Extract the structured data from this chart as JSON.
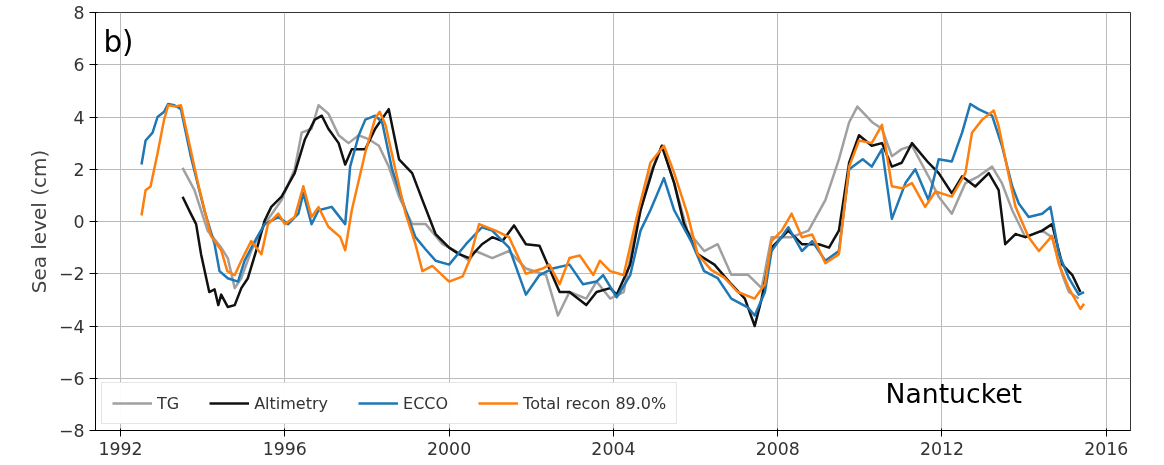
{
  "chart_data": {
    "type": "line",
    "ylabel": "Sea level (cm)",
    "xlim": [
      1991.39,
      2016.59
    ],
    "ylim": [
      -8,
      8
    ],
    "xticks": [
      1992,
      1996,
      2000,
      2004,
      2008,
      2012,
      2016
    ],
    "yticks": [
      -8,
      -6,
      -4,
      -2,
      0,
      2,
      4,
      6,
      8
    ],
    "grid": true,
    "legend": "bottom left",
    "line_style": "solid",
    "marker": "none",
    "annotations": [
      "b)",
      "Nantucket"
    ],
    "series": [
      {
        "name": "TG",
        "color": "#a0a0a0",
        "x": [
          1993.51,
          1993.8,
          1994.12,
          1994.45,
          1994.61,
          1994.78,
          1994.94,
          1995.18,
          1995.51,
          1995.92,
          1996.24,
          1996.41,
          1996.65,
          1996.82,
          1997.06,
          1997.31,
          1997.55,
          1997.8,
          1998.04,
          1998.29,
          1998.53,
          1998.78,
          1999.1,
          1999.43,
          1999.84,
          2000.16,
          2000.49,
          2000.64,
          2001.05,
          2001.46,
          2001.87,
          2002.36,
          2002.65,
          2002.93,
          2003.34,
          2003.59,
          2003.92,
          2004.25,
          2004.57,
          2004.9,
          2005.18,
          2005.48,
          2005.8,
          2006.21,
          2006.54,
          2006.87,
          2007.28,
          2007.61,
          2007.85,
          2008.34,
          2008.75,
          2009.16,
          2009.49,
          2009.74,
          2009.94,
          2010.3,
          2010.54,
          2010.78,
          2011.02,
          2011.27,
          2011.67,
          2011.92,
          2012.24,
          2012.57,
          2012.89,
          2013.22,
          2013.46,
          2013.71,
          2014.03,
          2014.44,
          2014.68,
          2014.93,
          2015.09,
          2015.33
        ],
        "values": [
          2.05,
          1.2,
          -0.35,
          -1.0,
          -1.4,
          -2.55,
          -2.17,
          -1.13,
          -0.1,
          0.82,
          2.0,
          3.4,
          3.55,
          4.45,
          4.13,
          3.3,
          3.0,
          3.3,
          3.15,
          2.9,
          2.1,
          0.95,
          -0.1,
          -0.1,
          -0.87,
          -1.13,
          -1.5,
          -1.13,
          -1.4,
          -1.13,
          -1.8,
          -2.05,
          -3.6,
          -2.7,
          -2.95,
          -2.3,
          -2.95,
          -2.7,
          -0.1,
          1.86,
          2.9,
          1.47,
          -0.35,
          -1.13,
          -0.87,
          -2.04,
          -2.04,
          -2.55,
          -0.6,
          -0.6,
          -0.35,
          0.82,
          2.38,
          3.8,
          4.4,
          3.8,
          3.55,
          2.5,
          2.77,
          2.9,
          1.73,
          0.95,
          0.3,
          1.47,
          1.73,
          2.1,
          1.47,
          0.43,
          -0.6,
          -0.35,
          -0.6,
          -2.04,
          -2.7,
          -2.95
        ]
      },
      {
        "name": "Altimetry",
        "color": "#111111",
        "x": [
          1993.51,
          1993.71,
          1993.84,
          1993.96,
          1994.16,
          1994.29,
          1994.38,
          1994.45,
          1994.61,
          1994.78,
          1994.94,
          1995.1,
          1995.35,
          1995.51,
          1995.67,
          1995.92,
          1996.24,
          1996.49,
          1996.73,
          1996.9,
          1997.06,
          1997.31,
          1997.47,
          1997.63,
          1997.96,
          1998.2,
          1998.53,
          1998.78,
          1999.1,
          1999.35,
          1999.67,
          2000.0,
          2000.24,
          2000.49,
          2000.8,
          2001.05,
          2001.3,
          2001.58,
          2001.87,
          2002.2,
          2002.44,
          2002.69,
          2002.93,
          2003.34,
          2003.59,
          2003.92,
          2004.08,
          2004.41,
          2004.66,
          2004.98,
          2005.18,
          2005.48,
          2005.72,
          2006.05,
          2006.46,
          2006.87,
          2007.2,
          2007.44,
          2007.61,
          2007.85,
          2008.26,
          2008.59,
          2009.0,
          2009.25,
          2009.49,
          2009.74,
          2009.98,
          2010.29,
          2010.54,
          2010.78,
          2011.02,
          2011.27,
          2011.67,
          2011.92,
          2012.24,
          2012.49,
          2012.81,
          2013.14,
          2013.38,
          2013.54,
          2013.79,
          2014.03,
          2014.44,
          2014.68,
          2014.93,
          2015.17,
          2015.37
        ],
        "values": [
          0.95,
          0.3,
          -0.1,
          -1.25,
          -2.7,
          -2.6,
          -3.2,
          -2.8,
          -3.27,
          -3.2,
          -2.55,
          -2.17,
          -0.87,
          0.04,
          0.56,
          0.95,
          1.85,
          3.15,
          3.9,
          4.05,
          3.55,
          3.0,
          2.18,
          2.77,
          2.77,
          3.55,
          4.3,
          2.38,
          1.85,
          0.82,
          -0.48,
          -1.0,
          -1.25,
          -1.4,
          -0.87,
          -0.6,
          -0.75,
          -0.15,
          -0.87,
          -0.93,
          -1.8,
          -2.7,
          -2.7,
          -3.2,
          -2.7,
          -2.55,
          -2.8,
          -1.65,
          0.43,
          2.1,
          2.9,
          1.47,
          -0.1,
          -1.25,
          -1.65,
          -2.4,
          -2.95,
          -4.0,
          -2.95,
          -1.0,
          -0.35,
          -0.87,
          -0.87,
          -1.0,
          -0.35,
          2.25,
          3.3,
          2.9,
          3.0,
          2.1,
          2.25,
          3.0,
          2.25,
          1.85,
          1.08,
          1.73,
          1.34,
          1.85,
          1.2,
          -0.87,
          -0.48,
          -0.6,
          -0.35,
          -0.1,
          -1.65,
          -2.04,
          -2.7
        ]
      },
      {
        "name": "ECCO",
        "color": "#1f77b4",
        "x": [
          1992.51,
          1992.61,
          1992.78,
          1992.9,
          1993.06,
          1993.16,
          1993.31,
          1993.47,
          1993.71,
          1994.04,
          1994.29,
          1994.41,
          1994.61,
          1994.86,
          1995.02,
          1995.27,
          1995.51,
          1995.84,
          1996.08,
          1996.33,
          1996.45,
          1996.65,
          1996.82,
          1997.14,
          1997.47,
          1997.59,
          1997.8,
          1997.96,
          1998.2,
          1998.37,
          1998.61,
          1998.94,
          1999.18,
          1999.43,
          1999.67,
          2000.0,
          2000.41,
          2000.8,
          2001.05,
          2001.46,
          2001.87,
          2002.2,
          2002.52,
          2002.93,
          2003.26,
          2003.59,
          2003.75,
          2004.08,
          2004.41,
          2004.66,
          2004.9,
          2005.23,
          2005.48,
          2005.89,
          2006.21,
          2006.54,
          2006.87,
          2007.28,
          2007.44,
          2007.69,
          2007.85,
          2008.26,
          2008.59,
          2008.84,
          2009.16,
          2009.49,
          2009.74,
          2010.07,
          2010.29,
          2010.54,
          2010.78,
          2011.11,
          2011.35,
          2011.67,
          2011.92,
          2012.24,
          2012.49,
          2012.69,
          2012.89,
          2013.22,
          2013.46,
          2013.71,
          2013.87,
          2014.11,
          2014.44,
          2014.64,
          2014.85,
          2015.09,
          2015.33,
          2015.46
        ],
        "values": [
          2.18,
          3.1,
          3.4,
          4.0,
          4.2,
          4.5,
          4.45,
          4.3,
          2.5,
          0.43,
          -0.87,
          -1.9,
          -2.17,
          -2.3,
          -1.5,
          -0.75,
          -0.1,
          0.17,
          -0.1,
          0.3,
          1.08,
          -0.1,
          0.43,
          0.56,
          -0.1,
          2.1,
          3.3,
          3.9,
          4.05,
          3.8,
          2.0,
          0.43,
          -0.6,
          -1.07,
          -1.5,
          -1.65,
          -0.87,
          -0.22,
          -0.35,
          -1.0,
          -2.8,
          -2.05,
          -1.8,
          -1.65,
          -2.4,
          -2.3,
          -2.05,
          -2.9,
          -2.05,
          -0.35,
          0.43,
          1.66,
          0.43,
          -0.75,
          -1.9,
          -2.17,
          -2.95,
          -3.3,
          -3.6,
          -2.7,
          -1.13,
          -0.22,
          -1.13,
          -0.75,
          -1.5,
          -1.13,
          2.0,
          2.38,
          2.1,
          2.77,
          0.1,
          1.47,
          2.0,
          0.82,
          2.38,
          2.3,
          3.4,
          4.5,
          4.3,
          4.05,
          2.9,
          1.35,
          0.69,
          0.17,
          0.3,
          0.56,
          -1.25,
          -2.17,
          -2.8,
          -2.7
        ]
      },
      {
        "name": "Total recon 89.0%",
        "color": "#ff7f0e",
        "x": [
          1992.51,
          1992.61,
          1992.73,
          1992.9,
          1993.06,
          1993.16,
          1993.35,
          1993.47,
          1993.63,
          1993.88,
          1994.2,
          1994.45,
          1994.6,
          1994.78,
          1994.94,
          1995.18,
          1995.43,
          1995.59,
          1995.84,
          1996.0,
          1996.24,
          1996.45,
          1996.65,
          1996.82,
          1997.06,
          1997.35,
          1997.47,
          1997.63,
          1997.96,
          1998.2,
          1998.31,
          1998.45,
          1998.69,
          1998.94,
          1999.18,
          1999.35,
          1999.59,
          2000.0,
          2000.33,
          2000.49,
          2000.73,
          2001.13,
          2001.46,
          2001.87,
          2002.28,
          2002.44,
          2002.69,
          2002.93,
          2003.18,
          2003.51,
          2003.67,
          2003.92,
          2004.25,
          2004.57,
          2004.9,
          2005.23,
          2005.48,
          2005.8,
          2006.05,
          2006.38,
          2006.7,
          2007.03,
          2007.44,
          2007.69,
          2007.85,
          2008.1,
          2008.34,
          2008.59,
          2008.84,
          2009.16,
          2009.49,
          2009.74,
          2009.98,
          2010.29,
          2010.54,
          2010.78,
          2011.02,
          2011.27,
          2011.59,
          2011.84,
          2012.24,
          2012.57,
          2012.73,
          2012.98,
          2013.26,
          2013.38,
          2013.63,
          2013.79,
          2014.11,
          2014.36,
          2014.68,
          2014.85,
          2015.09,
          2015.37,
          2015.46
        ],
        "values": [
          0.23,
          1.2,
          1.34,
          2.6,
          3.9,
          4.45,
          4.4,
          4.45,
          3.3,
          1.5,
          -0.55,
          -1.1,
          -1.9,
          -2.05,
          -1.5,
          -0.75,
          -1.25,
          -0.1,
          0.3,
          -0.1,
          0.17,
          1.35,
          0.17,
          0.55,
          -0.2,
          -0.6,
          -1.1,
          0.43,
          2.65,
          3.95,
          4.2,
          3.7,
          2.0,
          0.3,
          -0.87,
          -1.9,
          -1.7,
          -2.3,
          -2.1,
          -1.5,
          -0.1,
          -0.35,
          -0.6,
          -2.0,
          -1.8,
          -1.65,
          -2.4,
          -1.4,
          -1.3,
          -2.05,
          -1.5,
          -1.9,
          -2.05,
          0.17,
          2.25,
          2.9,
          1.85,
          0.3,
          -1.25,
          -1.85,
          -2.15,
          -2.7,
          -2.95,
          -2.4,
          -0.75,
          -0.35,
          0.3,
          -0.6,
          -0.5,
          -1.6,
          -1.25,
          2.1,
          3.1,
          3.0,
          3.7,
          1.35,
          1.27,
          1.47,
          0.56,
          1.15,
          0.95,
          1.85,
          3.4,
          3.9,
          4.25,
          3.65,
          1.73,
          0.56,
          -0.6,
          -1.13,
          -0.55,
          -1.65,
          -2.55,
          -3.35,
          -3.15
        ]
      }
    ]
  }
}
